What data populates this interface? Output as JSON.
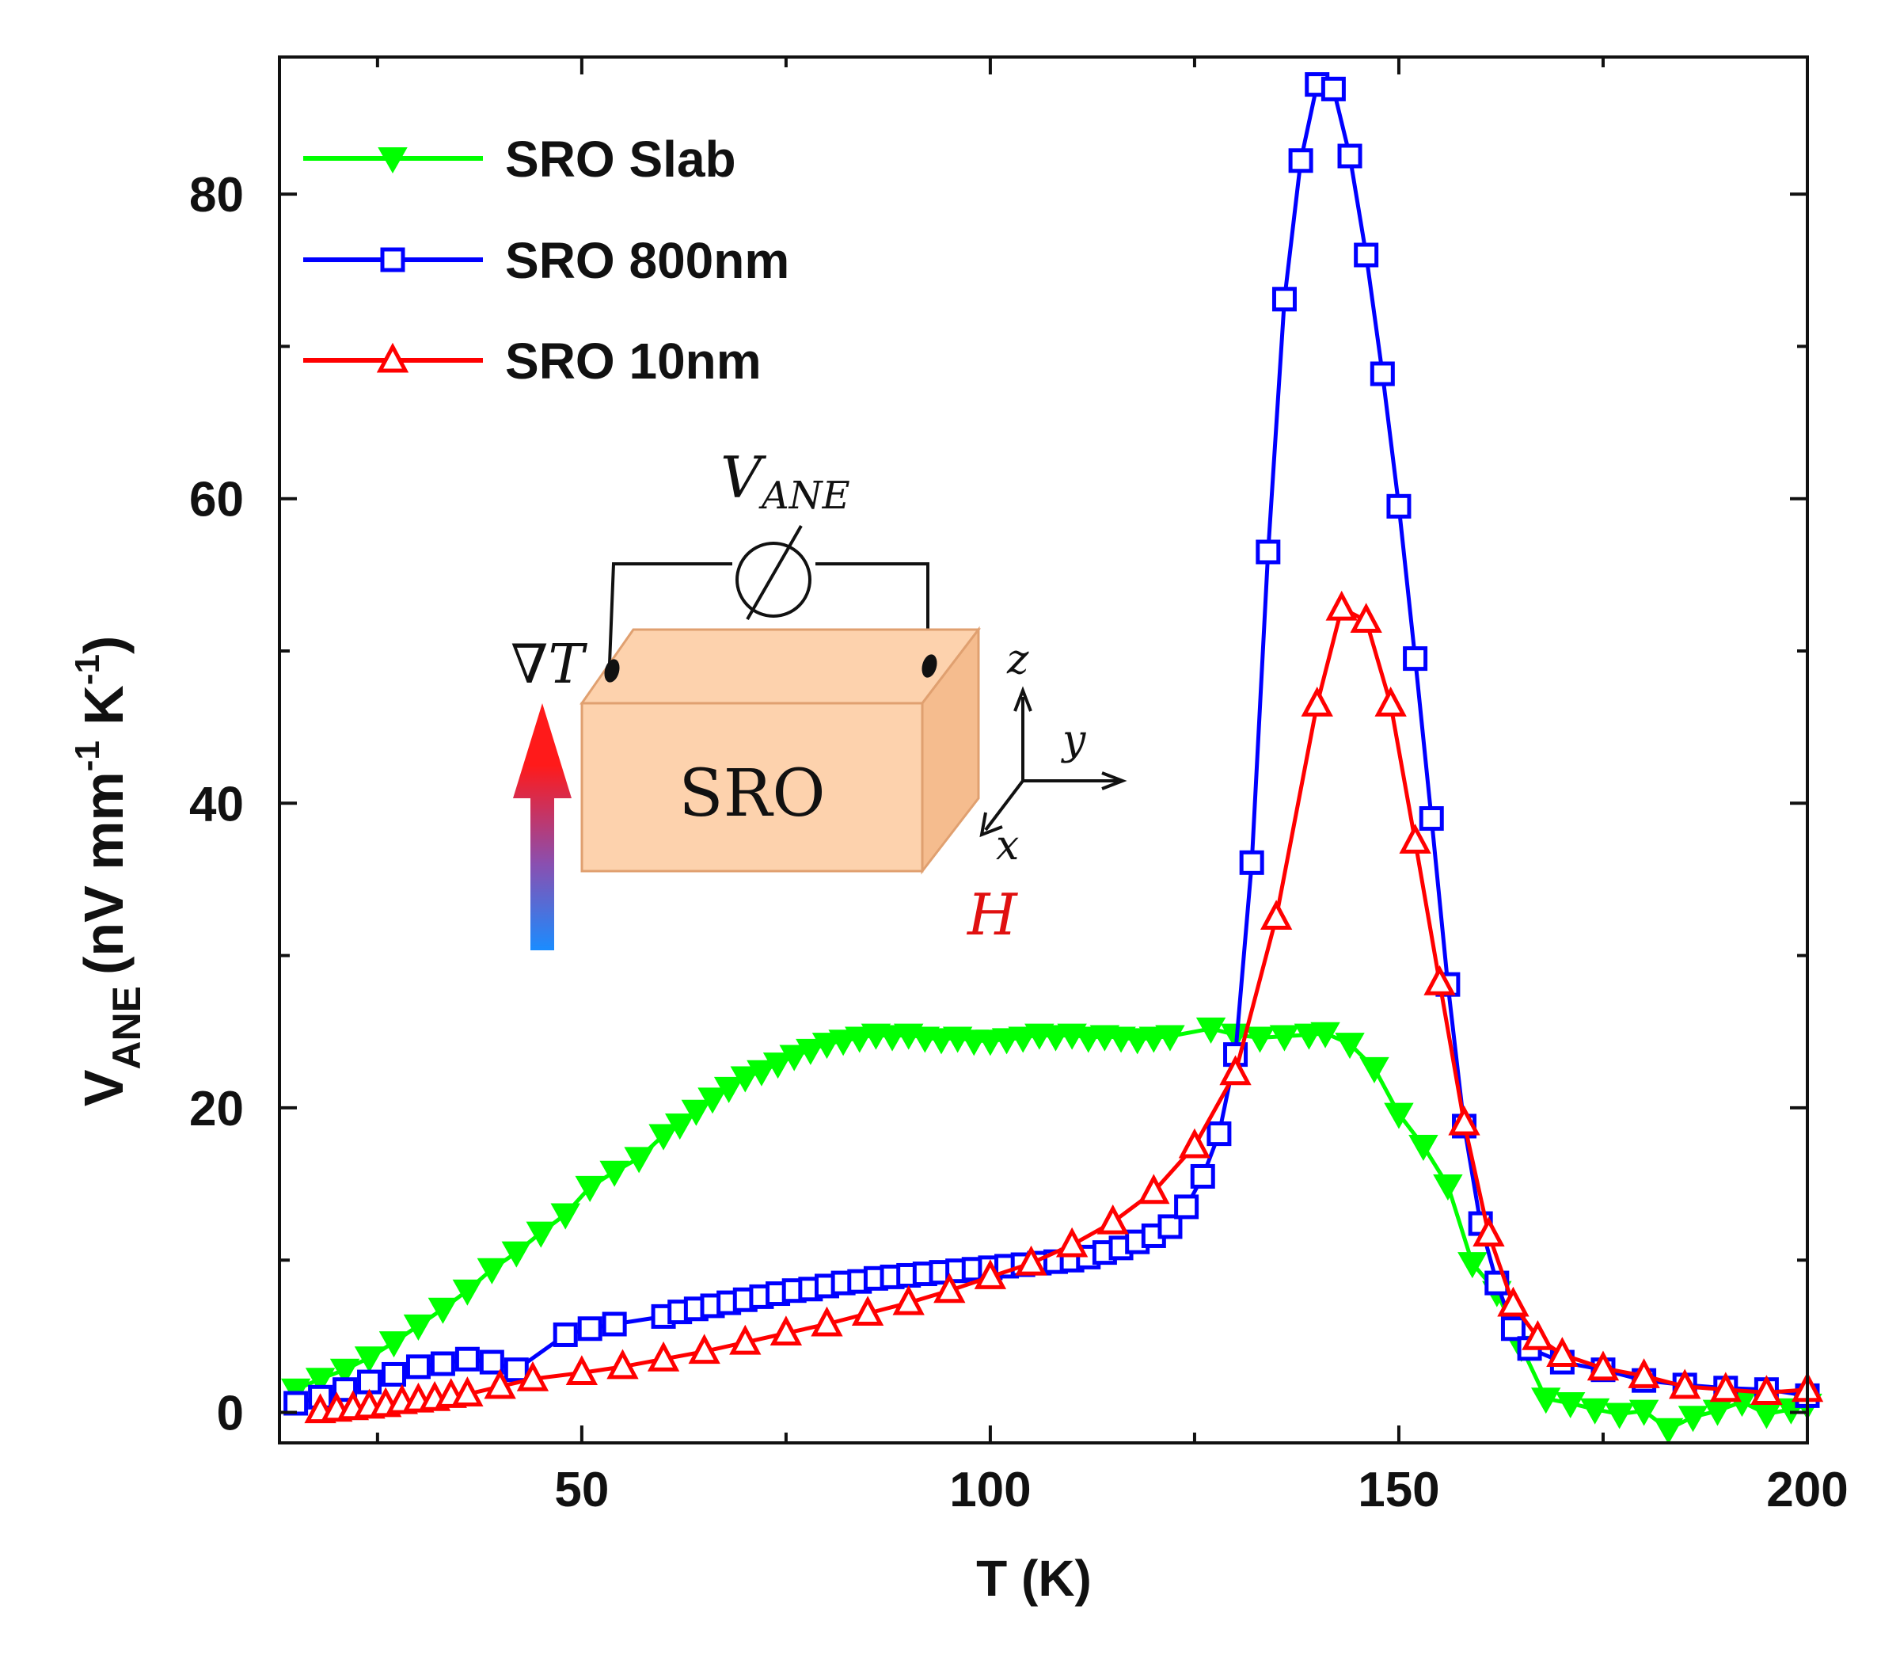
{
  "chart_data": {
    "type": "scatter",
    "xlabel": "T (K)",
    "ylabel": {
      "main": "V",
      "sub": "ANE",
      "units": "(nV mm",
      "exp1": "-1",
      "k": " K",
      "exp2": "-1",
      "close": ")"
    },
    "xlim": [
      13,
      200
    ],
    "ylim": [
      -2,
      89
    ],
    "xticks": [
      50,
      100,
      150,
      200
    ],
    "yticks": [
      0,
      20,
      40,
      60,
      80
    ],
    "legend_position": "top-left",
    "series": [
      {
        "name": "SRO Slab",
        "color": "#00ff00",
        "marker": "triangle-down",
        "filled": true,
        "x": [
          15,
          18,
          21,
          24,
          27,
          30,
          33,
          36,
          39,
          42,
          45,
          48,
          51,
          54,
          57,
          60,
          62,
          64,
          66,
          68,
          70,
          72,
          74,
          76,
          78,
          80,
          82,
          84,
          86,
          88,
          90,
          92,
          94,
          96,
          98,
          100,
          102,
          104,
          106,
          108,
          110,
          112,
          114,
          116,
          118,
          120,
          122,
          127,
          130,
          133,
          136,
          139,
          141,
          144,
          147,
          150,
          153,
          156,
          159,
          162,
          165,
          168,
          171,
          174,
          177,
          180,
          183,
          186,
          189,
          192,
          195,
          198,
          200
        ],
        "y": [
          1.5,
          2.2,
          2.8,
          3.6,
          4.6,
          5.7,
          6.8,
          8.0,
          9.4,
          10.5,
          11.8,
          13.0,
          14.8,
          15.8,
          16.7,
          18.2,
          18.9,
          19.8,
          20.6,
          21.3,
          22.0,
          22.4,
          22.9,
          23.4,
          23.8,
          24.2,
          24.4,
          24.6,
          24.8,
          24.7,
          24.8,
          24.6,
          24.5,
          24.6,
          24.4,
          24.4,
          24.5,
          24.6,
          24.8,
          24.7,
          24.8,
          24.6,
          24.7,
          24.6,
          24.5,
          24.6,
          24.7,
          25.2,
          24.8,
          24.6,
          24.7,
          24.8,
          24.9,
          24.2,
          22.6,
          19.6,
          17.5,
          14.9,
          9.8,
          7.9,
          4.3,
          0.9,
          0.6,
          0.2,
          -0.1,
          0.1,
          -1.1,
          -0.3,
          0.1,
          0.7,
          -0.1,
          0.2,
          0.5
        ]
      },
      {
        "name": "SRO 800nm",
        "color": "#0000ff",
        "marker": "square",
        "filled": false,
        "x": [
          15,
          18,
          21,
          24,
          27,
          30,
          33,
          36,
          39,
          42,
          48,
          51,
          54,
          60,
          62,
          64,
          66,
          68,
          70,
          72,
          74,
          76,
          78,
          80,
          82,
          84,
          86,
          88,
          90,
          92,
          94,
          96,
          98,
          100,
          102,
          104,
          106,
          108,
          110,
          112,
          114,
          116,
          118,
          120,
          122,
          124,
          126,
          128,
          130,
          132,
          134,
          136,
          138,
          140,
          142,
          144,
          146,
          148,
          150,
          152,
          154,
          156,
          158,
          160,
          162,
          164,
          166,
          170,
          175,
          180,
          185,
          190,
          195,
          200
        ],
        "y": [
          0.6,
          1.0,
          1.5,
          2.0,
          2.5,
          3.0,
          3.2,
          3.5,
          3.3,
          2.8,
          5.1,
          5.5,
          5.8,
          6.3,
          6.6,
          6.8,
          7.0,
          7.2,
          7.4,
          7.6,
          7.8,
          8.0,
          8.1,
          8.3,
          8.5,
          8.6,
          8.8,
          8.9,
          9.0,
          9.1,
          9.2,
          9.3,
          9.4,
          9.5,
          9.6,
          9.7,
          9.8,
          9.9,
          10.0,
          10.2,
          10.5,
          10.8,
          11.2,
          11.6,
          12.2,
          13.5,
          15.5,
          18.3,
          23.5,
          36.1,
          56.5,
          73.1,
          82.2,
          87.2,
          86.9,
          82.5,
          76.0,
          68.2,
          59.5,
          49.5,
          39.0,
          28.1,
          18.8,
          12.4,
          8.5,
          5.5,
          4.2,
          3.3,
          2.8,
          2.1,
          1.8,
          1.6,
          1.5,
          1.1
        ]
      },
      {
        "name": "SRO 10nm",
        "color": "#ff0000",
        "marker": "triangle-up",
        "filled": false,
        "x": [
          18,
          20,
          22,
          24,
          26,
          28,
          30,
          32,
          34,
          36,
          40,
          44,
          50,
          55,
          60,
          65,
          70,
          75,
          80,
          85,
          90,
          95,
          100,
          105,
          110,
          115,
          120,
          125,
          130,
          135,
          140,
          143,
          146,
          149,
          152,
          155,
          158,
          161,
          164,
          167,
          170,
          175,
          180,
          185,
          190,
          195,
          200
        ],
        "y": [
          0.1,
          0.2,
          0.3,
          0.4,
          0.5,
          0.7,
          0.8,
          0.9,
          1.1,
          1.2,
          1.7,
          2.2,
          2.6,
          3.0,
          3.5,
          4.0,
          4.6,
          5.2,
          5.8,
          6.5,
          7.2,
          8.0,
          8.9,
          9.8,
          11.0,
          12.5,
          14.5,
          17.5,
          22.3,
          32.5,
          46.5,
          52.8,
          52.0,
          46.5,
          37.5,
          28.2,
          19.0,
          11.7,
          7.1,
          4.9,
          3.8,
          2.9,
          2.4,
          1.7,
          1.5,
          1.3,
          1.5
        ]
      }
    ],
    "inset": {
      "voltmeter_label": "V",
      "voltmeter_sub": "ANE",
      "gradient_label": "∇T",
      "sample_label": "SRO",
      "axis_z": "z",
      "axis_y": "y",
      "axis_x": "x",
      "field_label": "H",
      "arrow_top_color": "#ff1a1a",
      "arrow_bottom_color": "#1a8cff",
      "block_front_color": "#fdd2ad",
      "block_side_color": "#f5bc8e",
      "block_edge_color": "#e0a070"
    }
  }
}
